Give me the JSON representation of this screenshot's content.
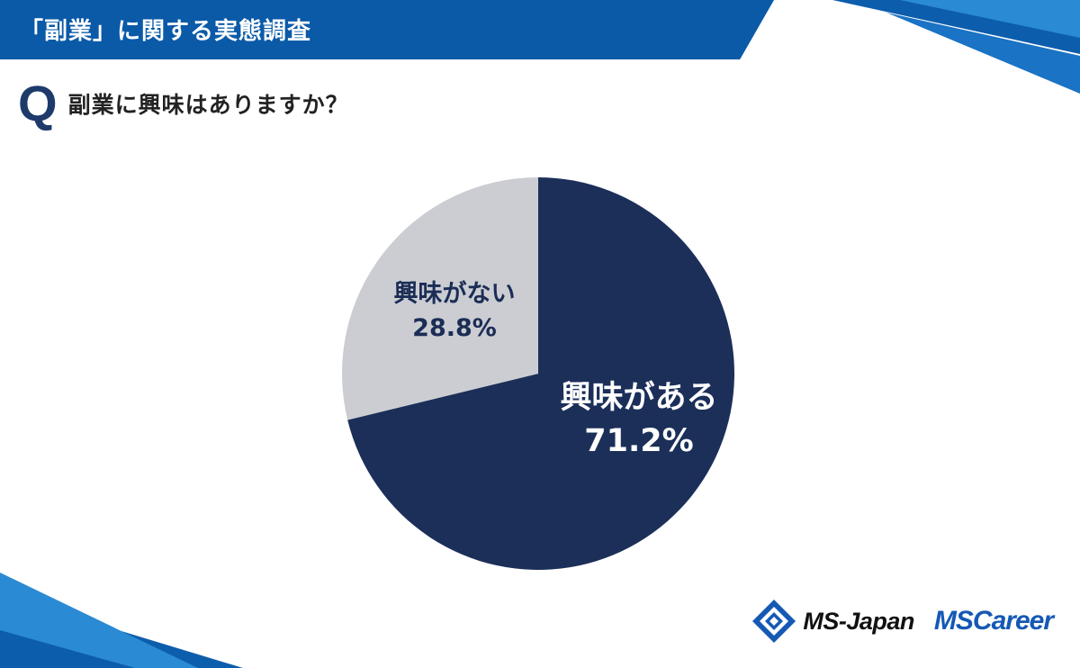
{
  "header": {
    "title": "「副業」に関する実態調査"
  },
  "question": {
    "marker": "Q",
    "text": "副業に興味はありますか？"
  },
  "chart_data": {
    "type": "pie",
    "title": "",
    "slices": [
      {
        "label": "興味がある",
        "value": 71.2,
        "display": "71.2%",
        "color": "#1b2f59"
      },
      {
        "label": "興味がない",
        "value": 28.8,
        "display": "28.8%",
        "color": "#cbcdd2"
      }
    ]
  },
  "logos": {
    "msjapan": "MS-Japan",
    "mscareer": "MSCareer"
  },
  "colors": {
    "header": "#0a5aa8",
    "accent_light": "#2a8ad3",
    "q_mark": "#1d3a6b"
  }
}
